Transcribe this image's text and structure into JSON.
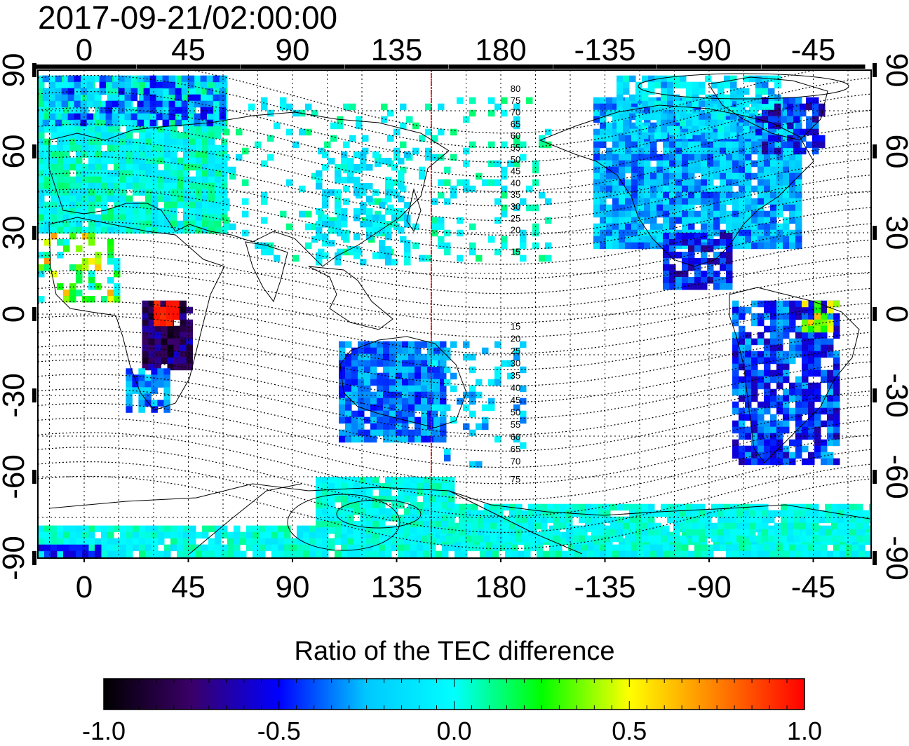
{
  "title": "2017-09-21/02:00:00",
  "map": {
    "projection": "equirectangular",
    "lon_center_deg": 135,
    "top_lon_ticks": [
      "0",
      "45",
      "90",
      "135",
      "180",
      "-135",
      "-90",
      "-45"
    ],
    "bottom_lon_ticks": [
      "0",
      "45",
      "90",
      "135",
      "180",
      "-135",
      "-90",
      "-45"
    ],
    "left_lat_ticks": [
      "90",
      "60",
      "30",
      "0",
      "-30",
      "-60",
      "-90"
    ],
    "right_lat_ticks": [
      "90",
      "60",
      "30",
      "0",
      "-30",
      "-60",
      "-90"
    ],
    "meridian_marker_lon": 150,
    "meridian_marker_color": "#ff0000",
    "contour_labels_north": [
      "80",
      "75",
      "70",
      "65",
      "60",
      "55",
      "50",
      "45",
      "40",
      "35",
      "30",
      "25",
      "20",
      "15"
    ],
    "contour_labels_south": [
      "15",
      "20",
      "25",
      "30",
      "35",
      "40",
      "45",
      "50",
      "55",
      "60",
      "65",
      "70",
      "75"
    ],
    "grid": true
  },
  "colorbar": {
    "title": "Ratio of the TEC difference",
    "min": -1.0,
    "max": 1.0,
    "tick_labels": [
      "-1.0",
      "-0.5",
      "0.0",
      "0.5",
      "1.0"
    ],
    "tick_values": [
      -1.0,
      -0.5,
      0.0,
      0.5,
      1.0
    ],
    "colors": [
      "#000000",
      "#3a0068",
      "#0000ff",
      "#00c8ff",
      "#00ffff",
      "#00ff00",
      "#ffff00",
      "#ff8000",
      "#ff0000"
    ]
  }
}
